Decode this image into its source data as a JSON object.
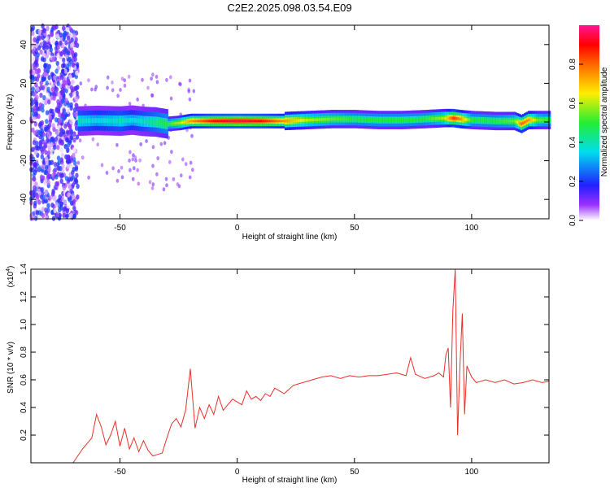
{
  "figure": {
    "title": "C2E2.2025.098.03.54.E09"
  },
  "chart_data": [
    {
      "type": "heatmap",
      "xlabel": "Height of straight line (km)",
      "ylabel": "Frequency (Hz)",
      "xlim": [
        -88,
        133
      ],
      "ylim": [
        -50,
        50
      ],
      "xticks": [
        -50,
        0,
        50,
        100
      ],
      "yticks": [
        -40,
        -20,
        0,
        20,
        40
      ],
      "colorbar": {
        "label": "Normalized spectral amplitude",
        "range": [
          0,
          1
        ],
        "ticks": [
          0.0,
          0.2,
          0.4,
          0.6,
          0.8
        ],
        "tick_labels": [
          "0.0",
          "0.2",
          "0.4",
          "0.6",
          "0.8"
        ],
        "colormap": "rainbow (white-violet-blue-cyan-green-yellow-red-pink)"
      },
      "features": [
        {
          "x_range": [
            -88,
            -68
          ],
          "freq_range": [
            -50,
            50
          ],
          "amplitude": 0.15,
          "description_note": "broadband noise"
        },
        {
          "x_range": [
            -68,
            -30
          ],
          "freq_center": 0,
          "freq_halfwidth": 4,
          "amplitude": 0.45
        },
        {
          "x_range": [
            -30,
            20
          ],
          "freq_center": 0,
          "freq_halfwidth": 2,
          "amplitude": 0.9
        },
        {
          "x_range": [
            20,
            133
          ],
          "freq_center": 1,
          "freq_halfwidth": 2.5,
          "amplitude": 0.55
        }
      ],
      "ridge": {
        "x": [
          -68,
          -60,
          -50,
          -45,
          -40,
          -35,
          -30,
          -25,
          -20,
          -10,
          0,
          10,
          20,
          30,
          40,
          50,
          60,
          70,
          80,
          88,
          92,
          95,
          100,
          110,
          118,
          121,
          124,
          128,
          133
        ],
        "freq": [
          0.5,
          0.8,
          0.5,
          1.0,
          0.3,
          0,
          -1,
          -0.5,
          0.5,
          0.5,
          0.5,
          0.5,
          0.5,
          1,
          1.5,
          1.5,
          1,
          1,
          1.5,
          2,
          2,
          1.5,
          1,
          0.5,
          0.5,
          -1,
          1,
          1,
          1
        ],
        "amplitude": [
          0.4,
          0.35,
          0.4,
          0.35,
          0.4,
          0.45,
          0.5,
          0.6,
          0.75,
          0.9,
          0.95,
          0.9,
          0.75,
          0.6,
          0.55,
          0.5,
          0.5,
          0.5,
          0.5,
          0.6,
          0.85,
          0.75,
          0.5,
          0.5,
          0.55,
          0.8,
          0.75,
          0.55,
          0.5
        ]
      }
    },
    {
      "type": "line",
      "xlabel": "Height of straight line (km)",
      "ylabel": "SNR (10 * v/v)",
      "y_multiplier_label": "(x10",
      "y_multiplier_exp": "4",
      "y_multiplier_close": ")",
      "xlim": [
        -88,
        133
      ],
      "ylim": [
        0,
        14000
      ],
      "xticks": [
        -50,
        0,
        50,
        100
      ],
      "yticks": [
        2000,
        4000,
        6000,
        8000,
        10000,
        12000,
        14000
      ],
      "ytick_labels": [
        "0.2",
        "0.4",
        "0.6",
        "0.8",
        "1.0",
        "1.2",
        "1.4"
      ],
      "series": [
        {
          "color": "#e8302a",
          "x": [
            -88,
            -70,
            -66,
            -62,
            -60,
            -58,
            -56,
            -54,
            -52,
            -50,
            -48,
            -46,
            -44,
            -42,
            -40,
            -38,
            -36,
            -34,
            -32,
            -30,
            -28,
            -26,
            -24,
            -22,
            -20,
            -18,
            -16,
            -14,
            -12,
            -10,
            -8,
            -6,
            -4,
            -2,
            0,
            2,
            4,
            6,
            8,
            10,
            12,
            14,
            16,
            18,
            20,
            24,
            28,
            32,
            36,
            40,
            44,
            48,
            52,
            56,
            60,
            64,
            68,
            72,
            74,
            76,
            80,
            84,
            86,
            88,
            89,
            90,
            91,
            92,
            93,
            94,
            95,
            96,
            97,
            98,
            100,
            102,
            104,
            106,
            110,
            114,
            118,
            122,
            126,
            130,
            133
          ],
          "values": [
            0,
            0,
            1000,
            1800,
            3500,
            2600,
            1300,
            2000,
            3000,
            1200,
            2500,
            1000,
            1800,
            800,
            1600,
            900,
            500,
            600,
            700,
            1800,
            2800,
            3200,
            2600,
            3800,
            6800,
            2500,
            4000,
            3200,
            4200,
            3500,
            4800,
            3800,
            4200,
            4600,
            4400,
            4200,
            5200,
            4600,
            4800,
            4500,
            5000,
            4800,
            5400,
            5200,
            5000,
            5600,
            5800,
            6000,
            6200,
            6300,
            6100,
            6300,
            6200,
            6300,
            6300,
            6400,
            6500,
            6300,
            7600,
            6400,
            6100,
            6300,
            6500,
            6200,
            7800,
            8300,
            4000,
            11000,
            14000,
            2000,
            7000,
            10800,
            3500,
            7000,
            6200,
            5800,
            5900,
            6000,
            5800,
            6000,
            5700,
            5800,
            6000,
            5800,
            5900
          ]
        }
      ]
    }
  ]
}
